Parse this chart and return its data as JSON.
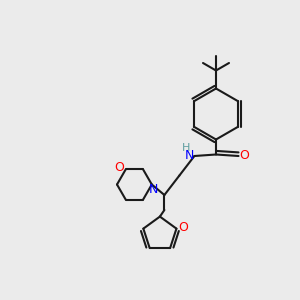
{
  "bg_color": "#ebebeb",
  "bond_color": "#1a1a1a",
  "N_color": "#0000ff",
  "O_color": "#ff0000",
  "H_color": "#5f9ea0",
  "lw": 1.5,
  "xlim": [
    0,
    10
  ],
  "ylim": [
    0,
    10
  ]
}
